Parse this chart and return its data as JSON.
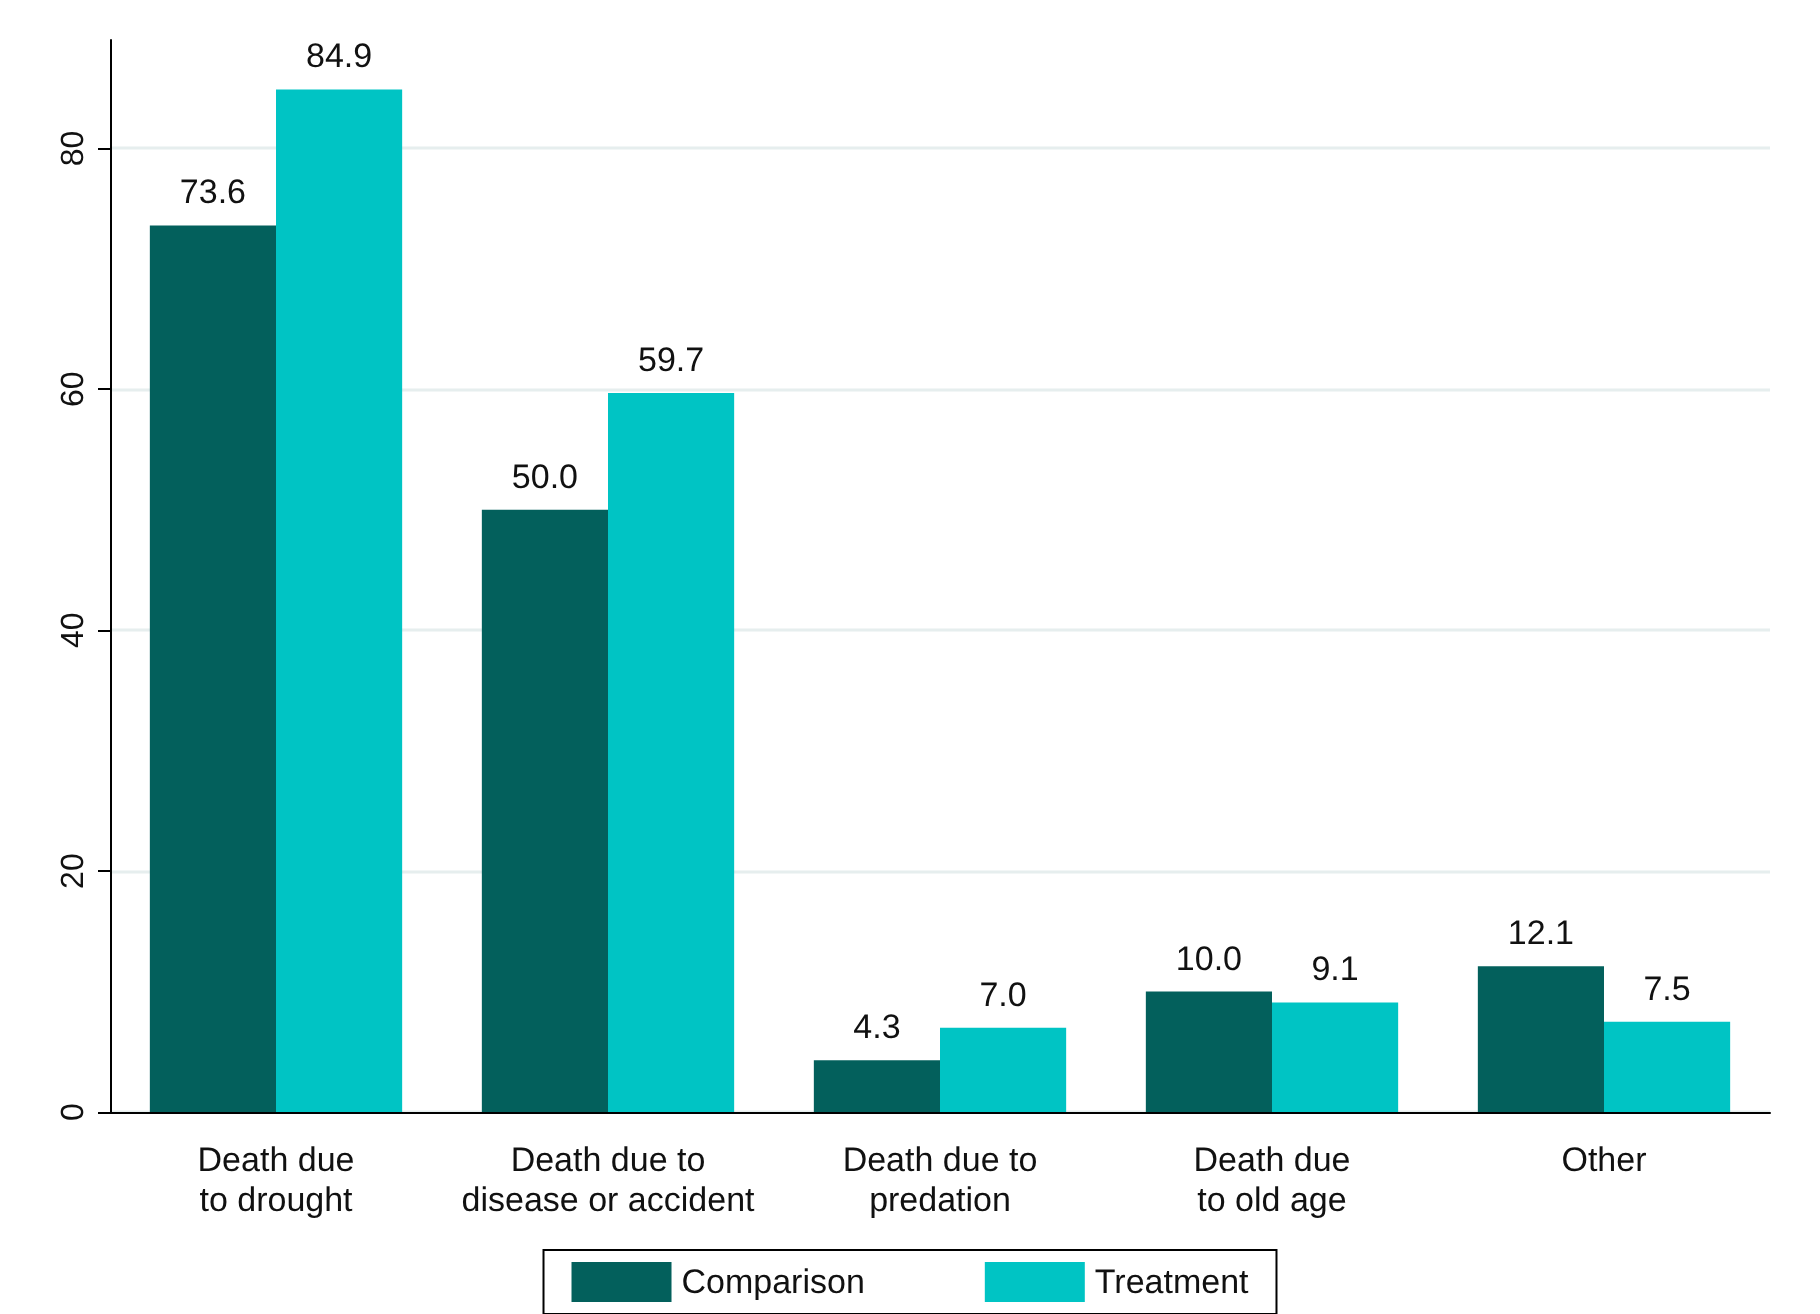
{
  "chart_data": {
    "type": "bar",
    "categories": [
      "Death due\nto drought",
      "Death due to\ndisease or accident",
      "Death due to\npredation",
      "Death due\nto old age",
      "Other"
    ],
    "series": [
      {
        "name": "Comparison",
        "color": "#03605c",
        "values": [
          73.6,
          50.0,
          4.3,
          10.0,
          12.1
        ],
        "value_labels": [
          "73.6",
          "50.0",
          "4.3",
          "10.0",
          "12.1"
        ]
      },
      {
        "name": "Treatment",
        "color": "#00c4c4",
        "values": [
          84.9,
          59.7,
          7.0,
          9.1,
          7.5
        ],
        "value_labels": [
          "84.9",
          "59.7",
          "7.0",
          "9.1",
          "7.5"
        ]
      }
    ],
    "ylim": [
      0,
      89
    ],
    "yticks": [
      0,
      20,
      40,
      60,
      80
    ],
    "grid": "y",
    "legend": "bottom"
  }
}
